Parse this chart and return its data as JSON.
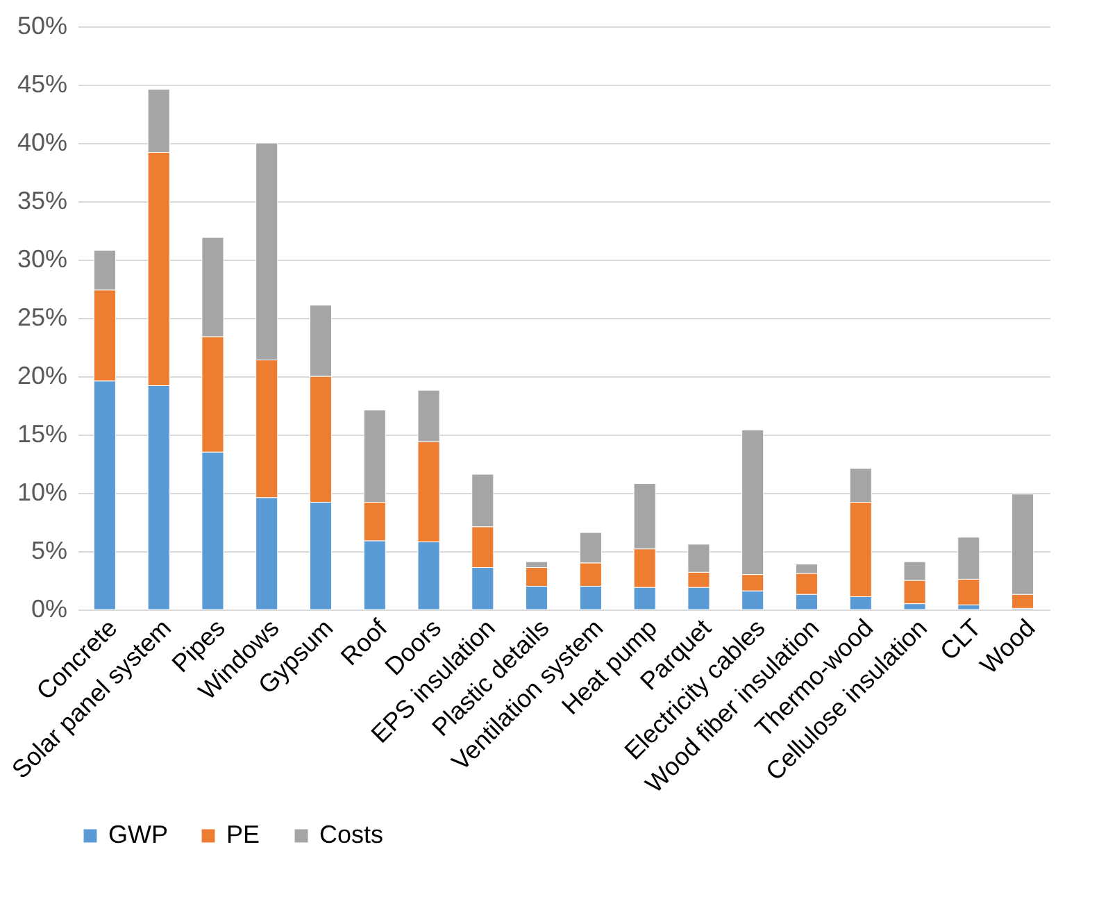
{
  "chart_data": {
    "type": "bar",
    "stacked": true,
    "legend": "bottom",
    "grid": "y",
    "categories": [
      "Concrete",
      "Solar panel system",
      "Pipes",
      "Windows",
      "Gypsum",
      "Roof",
      "Doors",
      "EPS insulation",
      "Plastic details",
      "Ventilation system",
      "Heat pump",
      "Parquet",
      "Electricity cables",
      "Wood fiber insulation",
      "Thermo-wood",
      "Cellulose insulation",
      "CLT",
      "Wood"
    ],
    "series": [
      {
        "name": "GWP",
        "color": "#5b9bd5",
        "values": [
          19.6,
          19.2,
          13.5,
          9.6,
          9.2,
          5.9,
          5.8,
          3.6,
          2.0,
          2.0,
          1.9,
          1.9,
          1.6,
          1.3,
          1.1,
          0.5,
          0.4,
          0.1
        ]
      },
      {
        "name": "PE",
        "color": "#ed7d31",
        "values": [
          7.8,
          20.0,
          9.9,
          11.8,
          10.8,
          3.3,
          8.6,
          3.5,
          1.6,
          2.0,
          3.3,
          1.3,
          1.4,
          1.8,
          8.1,
          2.0,
          2.2,
          1.2
        ]
      },
      {
        "name": "Costs",
        "color": "#a5a5a5",
        "values": [
          3.4,
          5.4,
          8.5,
          18.6,
          6.1,
          7.9,
          4.4,
          4.5,
          0.5,
          2.6,
          5.6,
          2.4,
          12.4,
          0.8,
          2.9,
          1.6,
          3.6,
          8.6
        ]
      }
    ],
    "ylim": [
      0,
      50
    ],
    "yticks": [
      {
        "value": 0,
        "label": "0%"
      },
      {
        "value": 5,
        "label": "5%"
      },
      {
        "value": 10,
        "label": "10%"
      },
      {
        "value": 15,
        "label": "15%"
      },
      {
        "value": 20,
        "label": "20%"
      },
      {
        "value": 25,
        "label": "25%"
      },
      {
        "value": 30,
        "label": "30%"
      },
      {
        "value": 35,
        "label": "35%"
      },
      {
        "value": 40,
        "label": "40%"
      },
      {
        "value": 45,
        "label": "45%"
      },
      {
        "value": 50,
        "label": "50%"
      }
    ]
  }
}
